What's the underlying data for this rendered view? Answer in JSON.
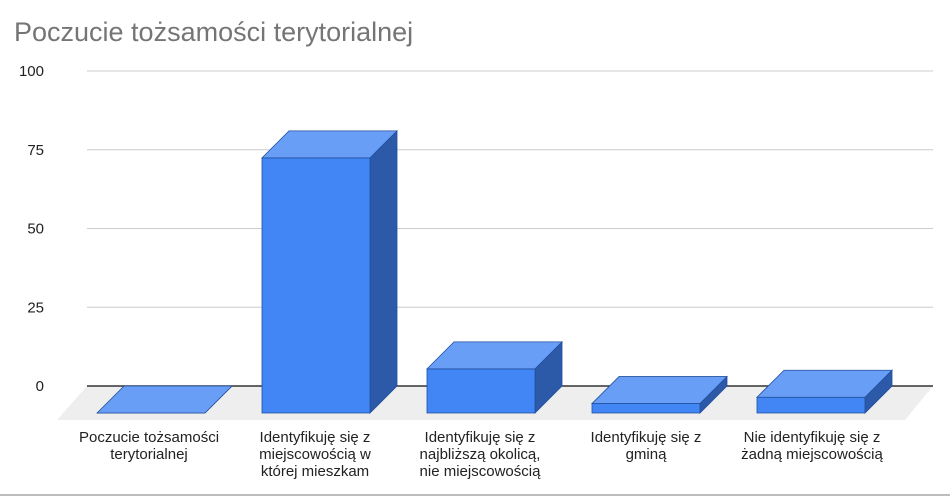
{
  "chart_data": {
    "type": "bar",
    "style": "3d",
    "title": "Poczucie tożsamości terytorialnej",
    "xlabel": "",
    "ylabel": "",
    "ylim": [
      0,
      100
    ],
    "yticks": [
      0,
      25,
      50,
      75,
      100
    ],
    "grid": true,
    "legend": "none",
    "categories": [
      [
        "Poczucie tożsamości",
        "terytorialnej"
      ],
      [
        "Identyfikuję się z",
        "miejscowością w",
        "której mieszkam"
      ],
      [
        "Identyfikuję się z",
        "najbliższą okolicą,",
        "nie miejscowością"
      ],
      [
        "Identyfikuję się z",
        "gminą"
      ],
      [
        "Nie identyfikuję się z",
        "żadną miejscowością"
      ]
    ],
    "series": [
      {
        "values": [
          0,
          81,
          14,
          3,
          5
        ]
      }
    ],
    "colors": {
      "front": "#4285f4",
      "top": "#699ef6",
      "side": "#2c5aa8",
      "edge": "#1f4f9e",
      "floor": "#eeeeee",
      "grid": "#cccccc",
      "baseline": "#333333",
      "tick_text": "#222222",
      "title": "#757575"
    }
  }
}
